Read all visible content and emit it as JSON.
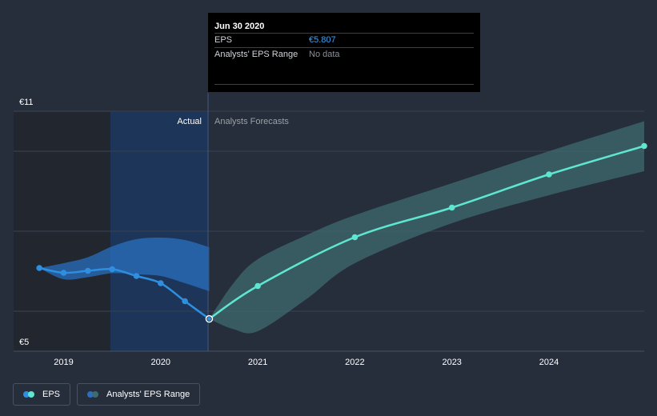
{
  "tooltip": {
    "date": "Jun 30 2020",
    "eps_label": "EPS",
    "eps_value": "€5.807",
    "range_label": "Analysts' EPS Range",
    "range_value": "No data"
  },
  "sections": {
    "actual": "Actual",
    "forecast": "Analysts Forecasts"
  },
  "legend": {
    "eps": "EPS",
    "range": "Analysts' EPS Range"
  },
  "colors": {
    "background": "#262d3b",
    "eps_line": "#2e8fe0",
    "forecast_line": "#5fe6d1",
    "range_past": "#2a6fbf",
    "range_forecast": "#3f6b6f",
    "actual_highlight": "#1c3558"
  },
  "chart_data": {
    "type": "line",
    "title": "",
    "xlabel": "",
    "ylabel": "",
    "ylim": [
      5,
      11
    ],
    "y_tick_labels": [
      "€11",
      "€5"
    ],
    "x_tick_labels": [
      "2019",
      "2020",
      "2021",
      "2022",
      "2023",
      "2024"
    ],
    "x_ticks": [
      2019,
      2020,
      2021,
      2022,
      2023,
      2024
    ],
    "xlim": [
      2018.5,
      2025.0
    ],
    "actual_shaded_start": 2019.5,
    "forecast_start": 2020.5,
    "grid": true,
    "legend_position": "bottom-left",
    "series": [
      {
        "name": "EPS",
        "kind": "actual",
        "x": [
          2018.75,
          2019.0,
          2019.25,
          2019.5,
          2019.75,
          2020.0,
          2020.25,
          2020.5
        ],
        "y": [
          7.08,
          6.96,
          7.01,
          7.05,
          6.88,
          6.7,
          6.25,
          5.807
        ]
      },
      {
        "name": "EPS",
        "kind": "forecast",
        "x": [
          2020.5,
          2021.0,
          2022.0,
          2023.0,
          2024.0,
          2025.0
        ],
        "y": [
          5.807,
          6.63,
          7.85,
          8.59,
          9.42,
          10.13
        ]
      }
    ],
    "ranges": [
      {
        "name": "Analysts' EPS Range",
        "kind": "actual",
        "x": [
          2018.75,
          2019.0,
          2019.25,
          2019.5,
          2019.75,
          2020.0,
          2020.25,
          2020.5
        ],
        "low": [
          7.08,
          6.8,
          6.85,
          6.95,
          6.92,
          6.88,
          6.7,
          6.5
        ],
        "high": [
          7.08,
          7.2,
          7.35,
          7.62,
          7.8,
          7.84,
          7.78,
          7.6
        ]
      },
      {
        "name": "Analysts' EPS Range",
        "kind": "forecast",
        "x": [
          2020.5,
          2020.75,
          2021.0,
          2021.5,
          2022.0,
          2023.0,
          2024.0,
          2025.0
        ],
        "low": [
          5.807,
          5.55,
          5.5,
          6.3,
          7.2,
          8.2,
          8.9,
          9.5
        ],
        "high": [
          5.807,
          6.7,
          7.3,
          7.9,
          8.4,
          9.2,
          10.0,
          10.75
        ]
      }
    ]
  }
}
